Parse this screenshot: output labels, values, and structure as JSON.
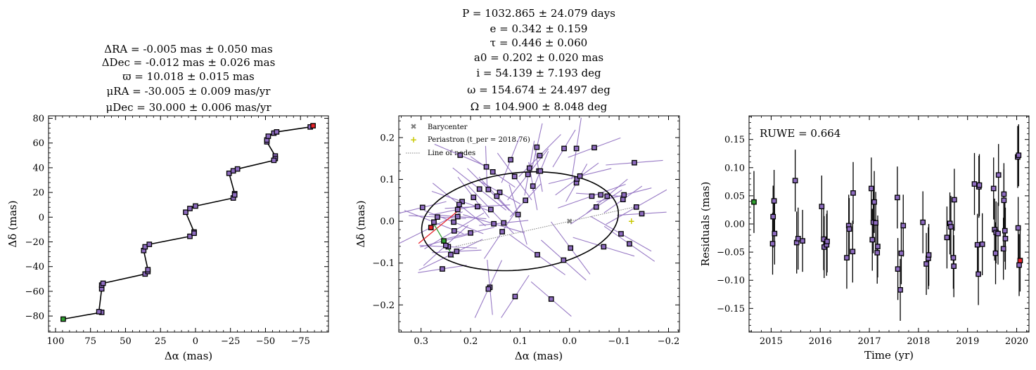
{
  "chart_data": [
    {
      "type": "line",
      "title_lines": [
        "ΔRA = -0.005 mas ± 0.050 mas",
        "ΔDec = -0.012 mas ± 0.026 mas",
        "ϖ = 10.018 ± 0.015 mas",
        "μRA = -30.005 ± 0.009 mas/yr",
        "μDec = 30.000 ± 0.006 mas/yr"
      ],
      "xlabel": "Δα (mas)",
      "ylabel": "Δδ (mas)",
      "xlim": [
        105,
        -95
      ],
      "ylim": [
        -93,
        82
      ],
      "xticks": [
        100,
        75,
        50,
        25,
        0,
        -25,
        -50,
        -75
      ],
      "xtick_labels": [
        "100",
        "75",
        "50",
        "25",
        "0",
        "−25",
        "−50",
        "−75"
      ],
      "yticks": [
        -80,
        -60,
        -40,
        -20,
        0,
        20,
        40,
        60,
        80
      ],
      "ytick_labels": [
        "−80",
        "−60",
        "−40",
        "−20",
        "0",
        "20",
        "40",
        "60",
        "80"
      ],
      "points": [
        [
          94.5,
          -82.5
        ],
        [
          67,
          -77
        ],
        [
          69,
          -76.5
        ],
        [
          67,
          -58
        ],
        [
          67,
          -55
        ],
        [
          66,
          -53.5
        ],
        [
          36,
          -46
        ],
        [
          34,
          -44
        ],
        [
          34,
          -42.5
        ],
        [
          37,
          -27
        ],
        [
          36,
          -24
        ],
        [
          33,
          -22
        ],
        [
          4,
          -15.5
        ],
        [
          1,
          -12
        ],
        [
          1,
          -13
        ],
        [
          7,
          4
        ],
        [
          4,
          7
        ],
        [
          0,
          9
        ],
        [
          -24,
          35.5
        ],
        [
          -27,
          37.5
        ],
        [
          -30,
          39
        ],
        [
          -27,
          15.5
        ],
        [
          -28,
          19
        ],
        [
          -28,
          18
        ],
        [
          -51,
          61
        ],
        [
          -51,
          62.5
        ],
        [
          -52,
          65.5
        ],
        [
          -56,
          68
        ],
        [
          -58,
          69
        ],
        [
          -57,
          49.5
        ],
        [
          -57,
          47.5
        ],
        [
          -56,
          46
        ],
        [
          -82,
          73
        ],
        [
          -84,
          74
        ]
      ],
      "start_point": [
        94.5,
        -82.5
      ],
      "end_point": [
        -84,
        74
      ],
      "colors": {
        "marker": "#8d6bbf",
        "start": "#2e9e2e",
        "end": "#e8232a",
        "curve": "#000000"
      }
    },
    {
      "type": "scatter",
      "title_lines": [
        "P = 1032.865 ± 24.079 days",
        "e = 0.342 ± 0.159",
        "τ = 0.446 ± 0.060",
        "a0 = 0.202 ± 0.020 mas",
        "i = 54.139 ± 7.193 deg",
        "ω = 154.674 ± 24.497 deg",
        "Ω = 104.900 ± 8.048 deg"
      ],
      "xlabel": "Δα (mas)",
      "ylabel": "Δδ (mas)",
      "xlim": [
        0.345,
        -0.222
      ],
      "ylim": [
        -0.265,
        0.252
      ],
      "xticks": [
        0.3,
        0.2,
        0.1,
        0.0,
        -0.1,
        -0.2
      ],
      "xtick_labels": [
        "0.3",
        "0.2",
        "0.1",
        "0.0",
        "−0.1",
        "−0.2"
      ],
      "yticks": [
        -0.2,
        -0.1,
        0.0,
        0.1,
        0.2
      ],
      "ytick_labels": [
        "−0.2",
        "−0.1",
        "0.0",
        "0.1",
        "0.2"
      ],
      "legend": {
        "position": "top-left",
        "entries": [
          "Barycenter",
          "Periastron (t_per = 2018.76)",
          "Line of nodes"
        ]
      },
      "ellipse": {
        "center": [
          0.1,
          0.0
        ],
        "semi_major": 0.2,
        "semi_minor": 0.116,
        "tilt_deg": 8
      },
      "barycenter": [
        0.0,
        0.0
      ],
      "periastron": [
        -0.125,
        0.0
      ],
      "line_of_nodes": [
        [
          0.23,
          -0.06
        ],
        [
          -0.135,
          0.035
        ]
      ],
      "points": [
        [
          0.297,
          0.033
        ],
        [
          0.267,
          0.01
        ],
        [
          0.274,
          -0.002
        ],
        [
          0.28,
          -0.015
        ],
        [
          0.254,
          -0.047
        ],
        [
          0.245,
          -0.061
        ],
        [
          0.25,
          -0.058
        ],
        [
          0.24,
          -0.08
        ],
        [
          0.228,
          -0.072
        ],
        [
          0.221,
          0.158
        ],
        [
          0.217,
          0.047
        ],
        [
          0.223,
          0.04
        ],
        [
          0.226,
          0.028
        ],
        [
          0.226,
          0.011
        ],
        [
          0.234,
          -0.002
        ],
        [
          0.233,
          -0.023
        ],
        [
          0.2,
          -0.028
        ],
        [
          0.194,
          0.057
        ],
        [
          0.186,
          0.035
        ],
        [
          0.182,
          0.077
        ],
        [
          0.168,
          0.13
        ],
        [
          0.155,
          0.118
        ],
        [
          0.164,
          0.076
        ],
        [
          0.159,
          0.028
        ],
        [
          0.141,
          0.069
        ],
        [
          0.147,
          0.06
        ],
        [
          0.153,
          -0.006
        ],
        [
          0.136,
          -0.025
        ],
        [
          0.133,
          -0.004
        ],
        [
          0.119,
          0.147
        ],
        [
          0.111,
          0.107
        ],
        [
          0.104,
          0.016
        ],
        [
          0.089,
          0.05
        ],
        [
          0.074,
          0.084
        ],
        [
          0.081,
          0.127
        ],
        [
          0.084,
          0.112
        ],
        [
          0.062,
          0.12
        ],
        [
          0.066,
          0.177
        ],
        [
          0.06,
          0.157
        ],
        [
          0.065,
          -0.08
        ],
        [
          0.059,
          0.12
        ],
        [
          0.11,
          -0.18
        ],
        [
          0.161,
          -0.158
        ],
        [
          0.164,
          -0.162
        ],
        [
          0.257,
          -0.114
        ],
        [
          0.037,
          -0.186
        ],
        [
          0.012,
          -0.093
        ],
        [
          -0.002,
          -0.064
        ],
        [
          -0.014,
          0.092
        ],
        [
          -0.015,
          0.101
        ],
        [
          -0.021,
          0.108
        ],
        [
          -0.014,
          0.174
        ],
        [
          0.011,
          0.174
        ],
        [
          -0.05,
          0.176
        ],
        [
          -0.054,
          0.034
        ],
        [
          -0.045,
          0.06
        ],
        [
          -0.063,
          0.063
        ],
        [
          -0.076,
          0.06
        ],
        [
          -0.069,
          -0.061
        ],
        [
          -0.104,
          -0.03
        ],
        [
          -0.108,
          0.052
        ],
        [
          -0.11,
          0.063
        ],
        [
          -0.121,
          -0.054
        ],
        [
          -0.135,
          0.034
        ],
        [
          -0.146,
          0.018
        ],
        [
          -0.131,
          0.14
        ]
      ],
      "start_point": [
        0.254,
        -0.047
      ],
      "end_point": [
        0.28,
        -0.015
      ],
      "colors": {
        "marker": "#8d6bbf",
        "start": "#2e9e2e",
        "end": "#e8232a",
        "scan": "#8d6bbf",
        "ellipse": "#000000",
        "barycenter": "#808080",
        "periastron": "#c8c800",
        "nodes": "#808080"
      }
    },
    {
      "type": "scatter",
      "annotation": "RUWE = 0.664",
      "xlabel": "Time (yr)",
      "ylabel": "Residuals (mas)",
      "xlim": [
        2014.55,
        2020.25
      ],
      "ylim": [
        -0.192,
        0.192
      ],
      "xticks": [
        2015,
        2016,
        2017,
        2018,
        2019,
        2020
      ],
      "xtick_labels": [
        "2015",
        "2016",
        "2017",
        "2018",
        "2019",
        "2020"
      ],
      "yticks": [
        -0.15,
        -0.1,
        -0.05,
        0.0,
        0.05,
        0.1,
        0.15
      ],
      "ytick_labels": [
        "−0.15",
        "−0.10",
        "−0.05",
        "0.00",
        "0.05",
        "0.10",
        "0.15"
      ],
      "error": 0.055,
      "points": [
        [
          2014.65,
          0.039
        ],
        [
          2015.03,
          -0.035
        ],
        [
          2015.04,
          0.013
        ],
        [
          2015.06,
          0.041
        ],
        [
          2015.07,
          -0.017
        ],
        [
          2015.49,
          0.077
        ],
        [
          2015.52,
          -0.033
        ],
        [
          2015.55,
          -0.026
        ],
        [
          2015.64,
          -0.03
        ],
        [
          2016.03,
          0.031
        ],
        [
          2016.07,
          -0.027
        ],
        [
          2016.08,
          -0.041
        ],
        [
          2016.13,
          -0.037
        ],
        [
          2016.14,
          -0.031
        ],
        [
          2016.54,
          -0.06
        ],
        [
          2016.58,
          -0.003
        ],
        [
          2016.59,
          -0.009
        ],
        [
          2016.66,
          -0.049
        ],
        [
          2016.67,
          0.055
        ],
        [
          2017.04,
          0.063
        ],
        [
          2017.06,
          -0.028
        ],
        [
          2017.08,
          0.003
        ],
        [
          2017.1,
          0.039
        ],
        [
          2017.13,
          0.002
        ],
        [
          2017.16,
          -0.051
        ],
        [
          2017.17,
          -0.04
        ],
        [
          2017.57,
          0.047
        ],
        [
          2017.58,
          -0.08
        ],
        [
          2017.63,
          -0.117
        ],
        [
          2017.65,
          -0.052
        ],
        [
          2017.69,
          -0.003
        ],
        [
          2018.09,
          0.003
        ],
        [
          2018.16,
          -0.071
        ],
        [
          2018.2,
          -0.061
        ],
        [
          2018.21,
          -0.055
        ],
        [
          2018.58,
          -0.024
        ],
        [
          2018.64,
          0.001
        ],
        [
          2018.66,
          -0.005
        ],
        [
          2018.71,
          -0.06
        ],
        [
          2018.72,
          -0.075
        ],
        [
          2018.73,
          0.043
        ],
        [
          2019.14,
          0.071
        ],
        [
          2019.2,
          -0.037
        ],
        [
          2019.22,
          -0.089
        ],
        [
          2019.23,
          0.066
        ],
        [
          2019.24,
          0.069
        ],
        [
          2019.3,
          -0.036
        ],
        [
          2019.53,
          0.063
        ],
        [
          2019.55,
          -0.01
        ],
        [
          2019.57,
          -0.052
        ],
        [
          2019.58,
          -0.015
        ],
        [
          2019.62,
          -0.017
        ],
        [
          2019.63,
          0.087
        ],
        [
          2019.73,
          -0.044
        ],
        [
          2019.74,
          0.042
        ],
        [
          2019.74,
          0.053
        ],
        [
          2019.76,
          -0.012
        ],
        [
          2019.77,
          -0.026
        ],
        [
          2020.02,
          0.119
        ],
        [
          2020.03,
          -0.007
        ],
        [
          2020.04,
          0.122
        ],
        [
          2020.05,
          -0.073
        ],
        [
          2020.07,
          -0.065
        ]
      ],
      "start_point": [
        2014.65,
        0.039
      ],
      "end_point": [
        2020.07,
        -0.065
      ],
      "colors": {
        "marker": "#8d6bbf",
        "start": "#2e9e2e",
        "end": "#e8232a",
        "errorbar": "#000000"
      }
    }
  ]
}
